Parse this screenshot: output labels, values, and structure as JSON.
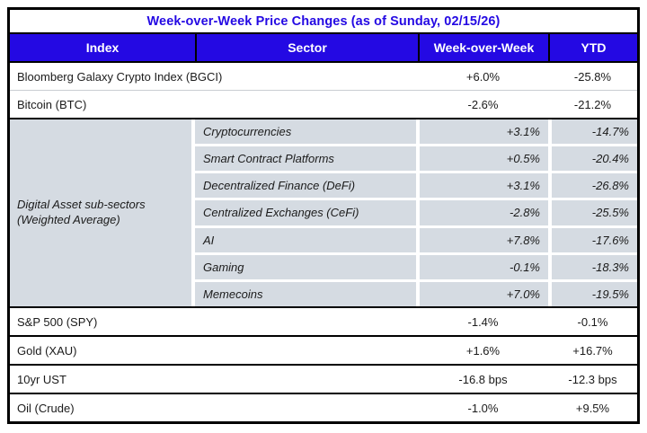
{
  "title": "Week-over-Week Price Changes (as of Sunday, 02/15/26)",
  "colors": {
    "accent_blue": "#2409E3",
    "subsector_cell_gray": "#D5DBE2",
    "border_dark": "#000000",
    "separator_light": "#C9CDD2",
    "header_text": "#FFFFFF",
    "body_text": "#1B1B1B"
  },
  "columns": {
    "index": "Index",
    "sector": "Sector",
    "wow": "Week-over-Week",
    "ytd": "YTD"
  },
  "index_rows_top": [
    {
      "index": "Bloomberg Galaxy Crypto Index (BGCI)",
      "wow": "+6.0%",
      "ytd": "-25.8%"
    },
    {
      "index": "Bitcoin (BTC)",
      "wow": "-2.6%",
      "ytd": "-21.2%"
    }
  ],
  "subsectors": {
    "group_label_line1": "Digital Asset sub-sectors",
    "group_label_line2": "(Weighted Average)",
    "rows": [
      {
        "sector": "Cryptocurrencies",
        "wow": "+3.1%",
        "ytd": "-14.7%"
      },
      {
        "sector": "Smart Contract Platforms",
        "wow": "+0.5%",
        "ytd": "-20.4%"
      },
      {
        "sector": "Decentralized Finance (DeFi)",
        "wow": "+3.1%",
        "ytd": "-26.8%"
      },
      {
        "sector": "Centralized Exchanges (CeFi)",
        "wow": "-2.8%",
        "ytd": "-25.5%"
      },
      {
        "sector": "AI",
        "wow": "+7.8%",
        "ytd": "-17.6%"
      },
      {
        "sector": "Gaming",
        "wow": "-0.1%",
        "ytd": "-18.3%"
      },
      {
        "sector": "Memecoins",
        "wow": "+7.0%",
        "ytd": "-19.5%"
      }
    ]
  },
  "index_rows_bottom": [
    {
      "index": "S&P 500 (SPY)",
      "wow": "-1.4%",
      "ytd": "-0.1%"
    },
    {
      "index": "Gold (XAU)",
      "wow": "+1.6%",
      "ytd": "+16.7%"
    },
    {
      "index": "10yr UST",
      "wow": "-16.8 bps",
      "ytd": "-12.3 bps"
    },
    {
      "index": "Oil (Crude)",
      "wow": "-1.0%",
      "ytd": "+9.5%"
    }
  ],
  "chart_data": {
    "type": "table",
    "title": "Week-over-Week Price Changes (as of Sunday, 02/15/26)",
    "columns": [
      "Index",
      "Sector",
      "Week-over-Week",
      "YTD"
    ],
    "rows": [
      [
        "Bloomberg Galaxy Crypto Index (BGCI)",
        "",
        "+6.0%",
        "-25.8%"
      ],
      [
        "Bitcoin (BTC)",
        "",
        "-2.6%",
        "-21.2%"
      ],
      [
        "Digital Asset sub-sectors (Weighted Average)",
        "Cryptocurrencies",
        "+3.1%",
        "-14.7%"
      ],
      [
        "Digital Asset sub-sectors (Weighted Average)",
        "Smart Contract Platforms",
        "+0.5%",
        "-20.4%"
      ],
      [
        "Digital Asset sub-sectors (Weighted Average)",
        "Decentralized Finance (DeFi)",
        "+3.1%",
        "-26.8%"
      ],
      [
        "Digital Asset sub-sectors (Weighted Average)",
        "Centralized Exchanges (CeFi)",
        "-2.8%",
        "-25.5%"
      ],
      [
        "Digital Asset sub-sectors (Weighted Average)",
        "AI",
        "+7.8%",
        "-17.6%"
      ],
      [
        "Digital Asset sub-sectors (Weighted Average)",
        "Gaming",
        "-0.1%",
        "-18.3%"
      ],
      [
        "Digital Asset sub-sectors (Weighted Average)",
        "Memecoins",
        "+7.0%",
        "-19.5%"
      ],
      [
        "S&P 500 (SPY)",
        "",
        "-1.4%",
        "-0.1%"
      ],
      [
        "Gold (XAU)",
        "",
        "+1.6%",
        "+16.7%"
      ],
      [
        "10yr UST",
        "",
        "-16.8 bps",
        "-12.3 bps"
      ],
      [
        "Oil (Crude)",
        "",
        "-1.0%",
        "+9.5%"
      ]
    ]
  }
}
